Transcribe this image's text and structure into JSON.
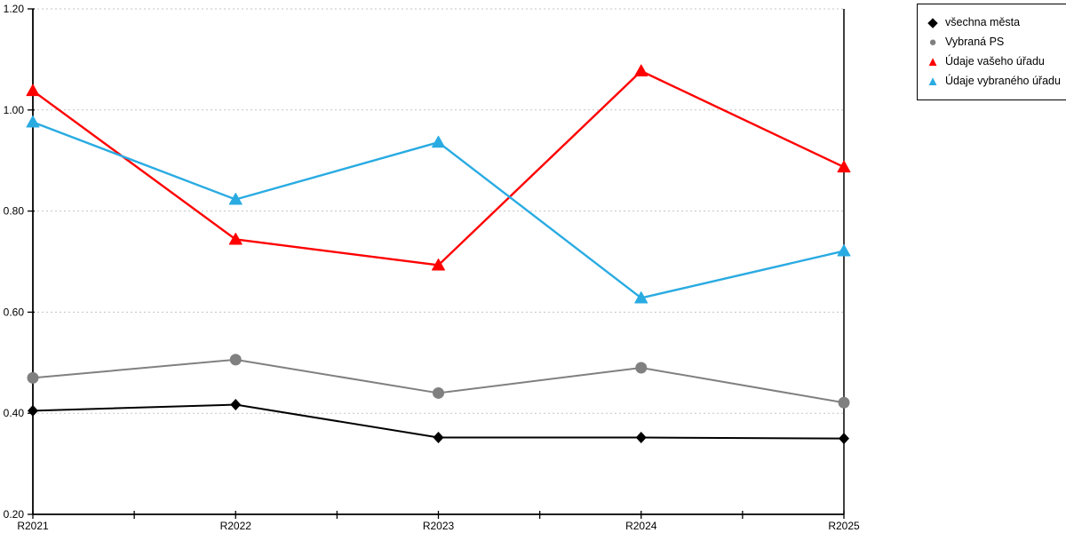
{
  "chart_data": {
    "type": "line",
    "title": "",
    "xlabel": "",
    "ylabel": "",
    "categories": [
      "R2021",
      "R2022",
      "R2023",
      "R2024",
      "R2025"
    ],
    "series": [
      {
        "name": "všechna města",
        "marker": "diamond",
        "color": "#000000",
        "line_width": 2,
        "values": [
          0.405,
          0.417,
          0.352,
          0.352,
          0.35
        ]
      },
      {
        "name": "Vybraná PS",
        "marker": "circle",
        "color": "#808080",
        "line_width": 2,
        "values": [
          0.47,
          0.506,
          0.44,
          0.49,
          0.421
        ]
      },
      {
        "name": "Údaje vašeho úřadu",
        "marker": "triangle",
        "color": "#ff0000",
        "line_width": 2.4,
        "values": [
          1.038,
          0.744,
          0.693,
          1.077,
          0.887
        ]
      },
      {
        "name": "Údaje vybraného úřadu",
        "marker": "triangle",
        "color": "#29abe2",
        "line_width": 2.4,
        "values": [
          0.976,
          0.823,
          0.936,
          0.628,
          0.721
        ]
      }
    ],
    "ylim": [
      0.2,
      1.2
    ],
    "yticks": [
      0.2,
      0.4,
      0.6,
      0.8,
      1.0,
      1.2
    ],
    "ytick_labels": [
      "0.20",
      "0.40",
      "0.60",
      "0.80",
      "1.00",
      "1.20"
    ],
    "grid": "horizontal-dotted",
    "grid_color": "#c3c3c3",
    "axis_color": "#000000",
    "legend_position": "outside-top-right"
  }
}
